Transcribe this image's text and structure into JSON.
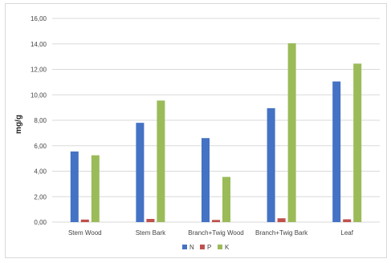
{
  "chart_data": {
    "type": "bar",
    "title": "",
    "xlabel": "",
    "ylabel": "mg/g",
    "ylim": [
      0,
      16
    ],
    "ytick_values": [
      0,
      2,
      4,
      6,
      8,
      10,
      12,
      14,
      16
    ],
    "ytick_labels": [
      "0,00",
      "2,00",
      "4,00",
      "6,00",
      "8,00",
      "10,00",
      "12,00",
      "14,00",
      "16,00"
    ],
    "grid": true,
    "legend_position": "bottom",
    "categories": [
      "Stem Wood",
      "Stem Bark",
      "Branch+Twig Wood",
      "Branch+Twig Bark",
      "Leaf"
    ],
    "series": [
      {
        "name": "N",
        "color": "#4472c4",
        "values": [
          5.55,
          7.8,
          6.6,
          8.95,
          11.05
        ]
      },
      {
        "name": "P",
        "color": "#c0504d",
        "values": [
          0.2,
          0.25,
          0.17,
          0.3,
          0.22
        ]
      },
      {
        "name": "K",
        "color": "#9bbb59",
        "values": [
          5.25,
          9.55,
          3.55,
          14.05,
          12.45
        ]
      }
    ]
  }
}
